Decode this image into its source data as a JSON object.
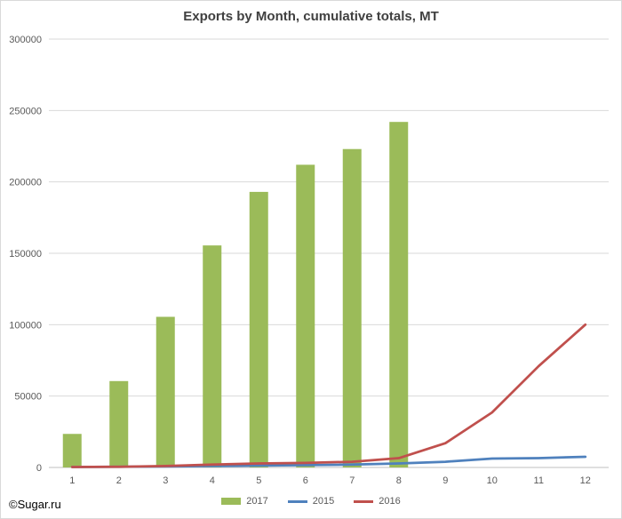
{
  "chart_data": {
    "type": "bar",
    "title": "Exports by Month, cumulative totals, MT",
    "xlabel": "",
    "ylabel": "",
    "categories": [
      "1",
      "2",
      "3",
      "4",
      "5",
      "6",
      "7",
      "8",
      "9",
      "10",
      "11",
      "12"
    ],
    "ylim": [
      0,
      300000
    ],
    "yticks": [
      0,
      50000,
      100000,
      150000,
      200000,
      250000,
      300000
    ],
    "ytick_labels": [
      "0",
      "50000",
      "100000",
      "150000",
      "200000",
      "250000",
      "300000"
    ],
    "grid": true,
    "legend_position": "bottom",
    "series": [
      {
        "name": "2017",
        "kind": "bar",
        "color": "#9bbb59",
        "values": [
          23500,
          60500,
          105500,
          155500,
          193000,
          212000,
          223000,
          242000,
          null,
          null,
          null,
          null
        ]
      },
      {
        "name": "2015",
        "kind": "line",
        "color": "#4f81bd",
        "values": [
          300,
          500,
          700,
          1000,
          1300,
          1600,
          2000,
          2800,
          4000,
          6200,
          6500,
          7500
        ]
      },
      {
        "name": "2016",
        "kind": "line",
        "color": "#c0504d",
        "values": [
          300,
          500,
          1000,
          2000,
          2800,
          3200,
          4000,
          6500,
          17000,
          38500,
          71000,
          100000
        ]
      }
    ]
  },
  "watermark": "©Sugar.ru"
}
